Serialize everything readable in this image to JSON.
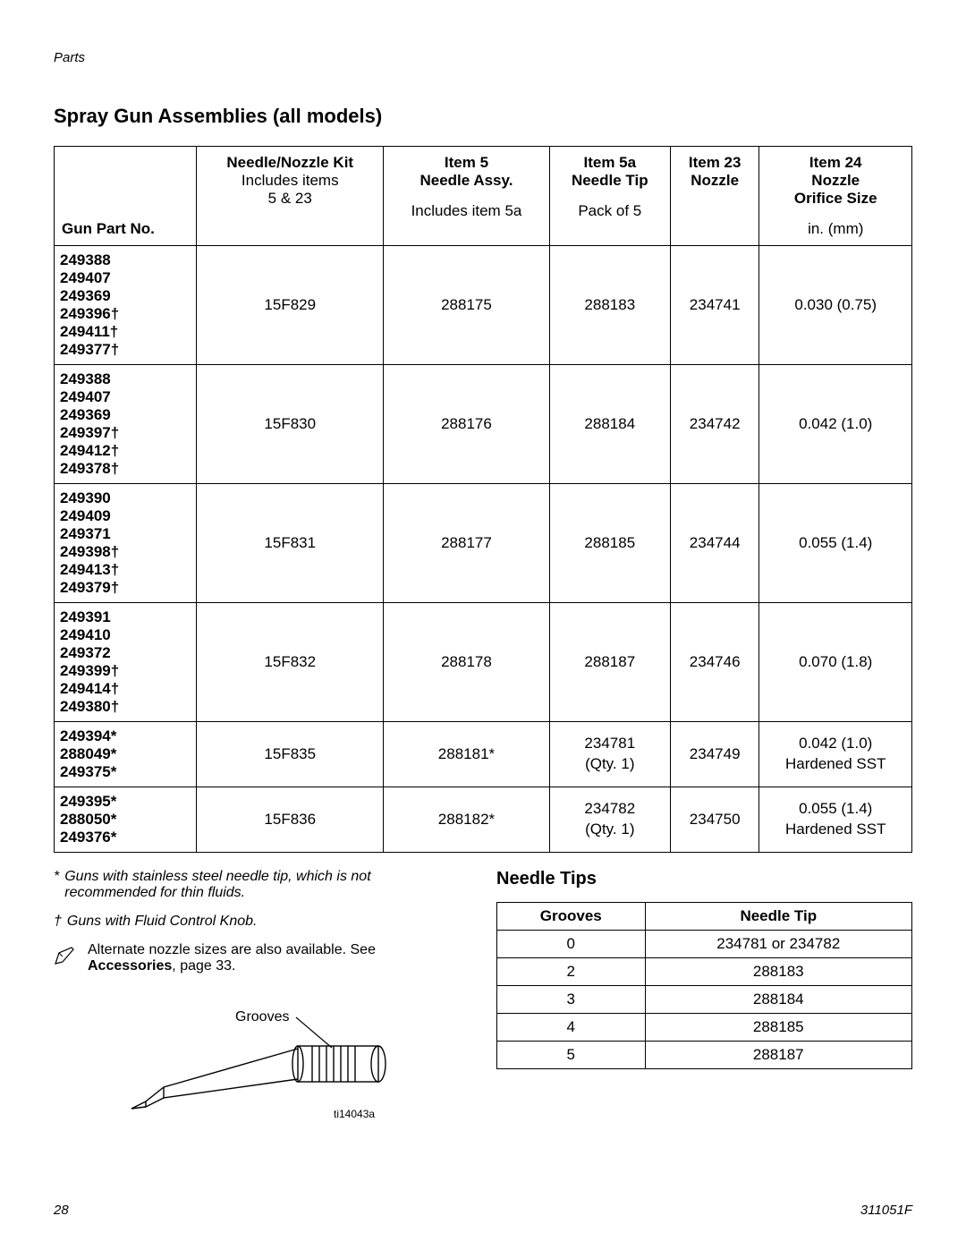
{
  "header": {
    "section_label": "Parts"
  },
  "title": "Spray Gun Assemblies (all models)",
  "main_table": {
    "headers": {
      "gun": {
        "line1": "Gun Part No."
      },
      "kit": {
        "line1": "Needle/Nozzle Kit",
        "line2": "Includes items",
        "line3": "5 & 23"
      },
      "item5": {
        "line1": "Item 5",
        "line2": "Needle Assy.",
        "line3": "Includes item 5a"
      },
      "item5a": {
        "line1": "Item 5a",
        "line2": "Needle Tip",
        "line3": "Pack of 5"
      },
      "item23": {
        "line1": "Item 23",
        "line2": "Nozzle"
      },
      "item24": {
        "line1": "Item 24",
        "line2": "Nozzle",
        "line3": "Orifice Size",
        "line4": "in. (mm)"
      }
    },
    "rows": [
      {
        "guns": [
          "249388",
          "249407",
          "249369",
          "249396†",
          "249411†",
          "249377†"
        ],
        "kit": "15F829",
        "item5": "288175",
        "item5a": "288183",
        "item23": "234741",
        "item24": "0.030 (0.75)"
      },
      {
        "guns": [
          "249388",
          "249407",
          "249369",
          "249397†",
          "249412†",
          "249378†"
        ],
        "kit": "15F830",
        "item5": "288176",
        "item5a": "288184",
        "item23": "234742",
        "item24": "0.042 (1.0)"
      },
      {
        "guns": [
          "249390",
          "249409",
          "249371",
          "249398†",
          "249413†",
          "249379†"
        ],
        "kit": "15F831",
        "item5": "288177",
        "item5a": "288185",
        "item23": "234744",
        "item24": "0.055 (1.4)"
      },
      {
        "guns": [
          "249391",
          "249410",
          "249372",
          "249399†",
          "249414†",
          "249380†"
        ],
        "kit": "15F832",
        "item5": "288178",
        "item5a": "288187",
        "item23": "234746",
        "item24": "0.070 (1.8)"
      },
      {
        "guns": [
          "249394*",
          "288049*",
          "249375*"
        ],
        "kit": "15F835",
        "item5": "288181*",
        "item5a_l1": "234781",
        "item5a_l2": "(Qty. 1)",
        "item23": "234749",
        "item24_l1": "0.042 (1.0)",
        "item24_l2": "Hardened SST"
      },
      {
        "guns": [
          "249395*",
          "288050*",
          "249376*"
        ],
        "kit": "15F836",
        "item5": "288182*",
        "item5a_l1": "234782",
        "item5a_l2": "(Qty. 1)",
        "item23": "234750",
        "item24_l1": "0.055 (1.4)",
        "item24_l2": "Hardened SST"
      }
    ]
  },
  "footnotes": {
    "star_sym": "*",
    "star": "Guns with stainless steel needle tip, which is not recommended for thin fluids.",
    "dagger_sym": "†",
    "dagger": "Guns with Fluid Control Knob.",
    "alt_pre": "Alternate nozzle sizes are also available. See ",
    "alt_bold": "Accessories",
    "alt_post": ", page 33."
  },
  "diagram": {
    "grooves_label": "Grooves",
    "ti_label": "ti14043a"
  },
  "needle_tips": {
    "title": "Needle Tips",
    "headers": {
      "grooves": "Grooves",
      "tip": "Needle Tip"
    },
    "rows": [
      {
        "g": "0",
        "t": "234781 or 234782"
      },
      {
        "g": "2",
        "t": "288183"
      },
      {
        "g": "3",
        "t": "288184"
      },
      {
        "g": "4",
        "t": "288185"
      },
      {
        "g": "5",
        "t": "288187"
      }
    ]
  },
  "footer": {
    "page": "28",
    "doc": "311051F"
  }
}
